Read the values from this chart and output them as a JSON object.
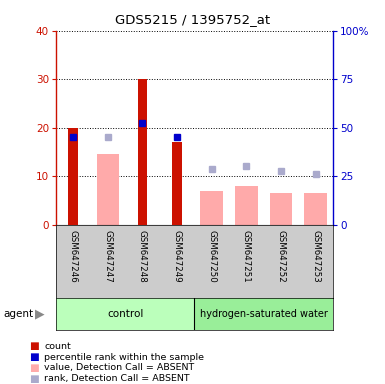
{
  "title": "GDS5215 / 1395752_at",
  "samples": [
    "GSM647246",
    "GSM647247",
    "GSM647248",
    "GSM647249",
    "GSM647250",
    "GSM647251",
    "GSM647252",
    "GSM647253"
  ],
  "count_values": [
    20,
    0,
    30,
    17,
    0,
    0,
    0,
    0
  ],
  "percentile_rank_values": [
    18,
    0,
    21,
    18,
    0,
    0,
    0,
    0
  ],
  "value_absent": [
    0,
    14.5,
    0,
    0,
    7,
    8,
    6.5,
    6.5
  ],
  "rank_absent": [
    0,
    18,
    0,
    0,
    11.5,
    12,
    11,
    10.5
  ],
  "ylim_left": [
    0,
    40
  ],
  "ylim_right": [
    0,
    100
  ],
  "yticks_left": [
    0,
    10,
    20,
    30,
    40
  ],
  "yticks_right": [
    0,
    25,
    50,
    75,
    100
  ],
  "ytick_labels_right": [
    "0",
    "25",
    "50",
    "75",
    "100%"
  ],
  "color_count": "#cc1100",
  "color_rank": "#0000cc",
  "color_value_absent": "#ffaaaa",
  "color_rank_absent": "#aaaacc",
  "color_control_bg": "#bbffbb",
  "color_hsw_bg": "#99ee99",
  "color_sample_bg": "#cccccc",
  "legend_labels": [
    "count",
    "percentile rank within the sample",
    "value, Detection Call = ABSENT",
    "rank, Detection Call = ABSENT"
  ],
  "legend_colors": [
    "#cc1100",
    "#0000cc",
    "#ffaaaa",
    "#aaaacc"
  ]
}
